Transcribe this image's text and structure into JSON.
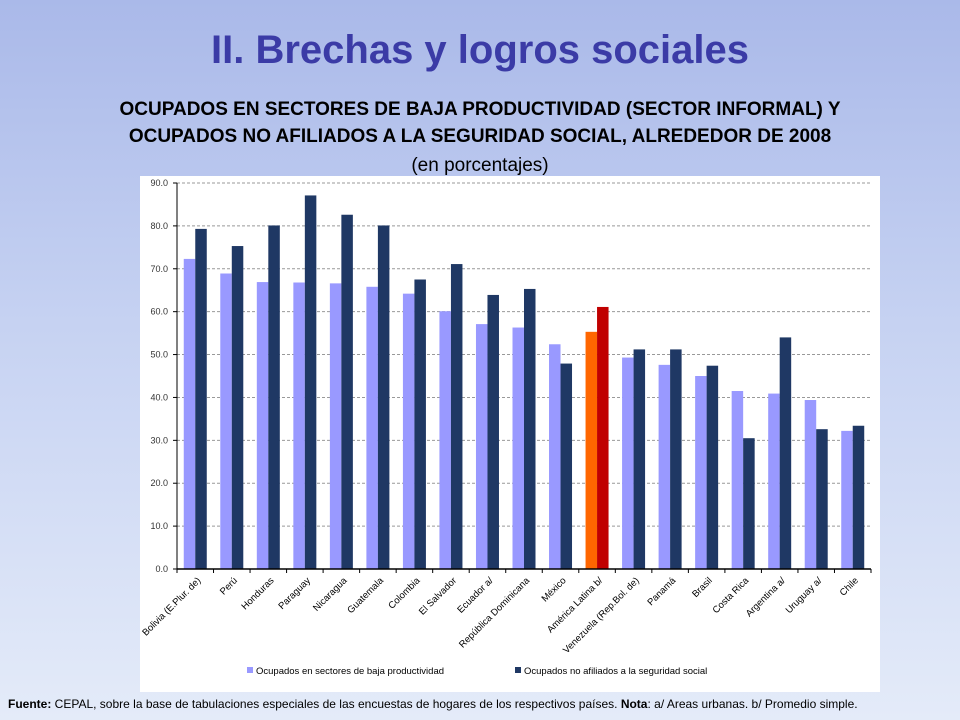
{
  "slide": {
    "title": "II. Brechas y logros sociales",
    "heading_line1": "OCUPADOS EN SECTORES DE BAJA PRODUCTIVIDAD (SECTOR INFORMAL) Y",
    "heading_line2": "OCUPADOS NO AFILIADOS A LA SEGURIDAD SOCIAL, ALREDEDOR DE 2008",
    "subheading": "(en porcentajes)"
  },
  "source": {
    "label": "Fuente:",
    "text": " CEPAL, sobre la base de tabulaciones especiales de las encuestas de hogares de los respectivos países. ",
    "note_label": "Nota",
    "note_text": ": a/ Areas urbanas.  b/ Promedio simple."
  },
  "chart_data": {
    "type": "bar",
    "categories": [
      "Bolivia (E.Plur. de)",
      "Perú",
      "Honduras",
      "Paraguay",
      "Nicaragua",
      "Guatemala",
      "Colombia",
      "El Salvador",
      "Ecuador a/",
      "República Dominicana",
      "México",
      "América Latina b/",
      "Venezuela (Rep.Bol. de)",
      "Panamá",
      "Brasil",
      "Costa Rica",
      "Argentina a/",
      "Uruguay a/",
      "Chile"
    ],
    "series": [
      {
        "name": "Ocupados en sectores de baja productividad",
        "color": "#9999ff",
        "values": [
          72.3,
          68.9,
          66.9,
          66.8,
          66.6,
          65.8,
          64.2,
          60.1,
          57.1,
          56.3,
          52.4,
          55.3,
          49.3,
          47.6,
          45.0,
          41.5,
          40.9,
          39.4,
          32.2
        ]
      },
      {
        "name": "Ocupados no afiliados a la seguridad social",
        "color": "#1f3864",
        "values": [
          79.3,
          75.3,
          80.1,
          87.1,
          82.6,
          80.1,
          67.5,
          71.1,
          63.9,
          65.3,
          47.9,
          61.1,
          51.2,
          51.2,
          47.4,
          30.5,
          54.0,
          32.6,
          33.4
        ]
      }
    ],
    "highlight": {
      "category": "América Latina b/",
      "colors": [
        "#ff6600",
        "#c00000"
      ]
    },
    "yticks": [
      "0.0",
      "10.0",
      "20.0",
      "30.0",
      "40.0",
      "50.0",
      "60.0",
      "70.0",
      "80.0",
      "90.0"
    ],
    "ylim": [
      0,
      90
    ],
    "grid": true,
    "legend_position": "bottom"
  }
}
